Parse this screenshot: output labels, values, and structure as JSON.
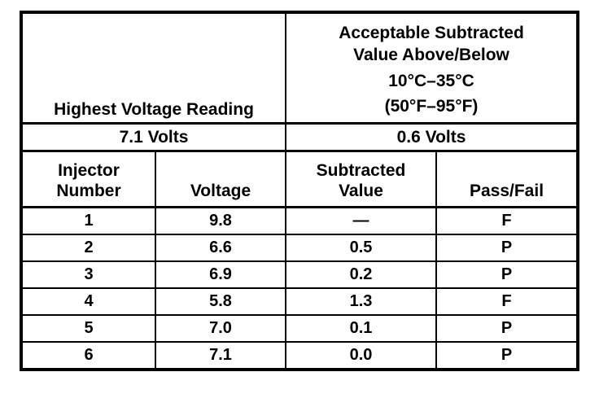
{
  "colors": {
    "ink": "#000000",
    "paper": "#ffffff"
  },
  "table": {
    "top": {
      "left_label": "Highest Voltage Reading",
      "right_lines": [
        "Acceptable Subtracted",
        "Value Above/Below",
        "10°C–35°C",
        "(50°F–95°F)"
      ]
    },
    "volts": {
      "left": "7.1 Volts",
      "right": "0.6 Volts"
    },
    "headers": [
      "Injector\nNumber",
      "Voltage",
      "Subtracted\nValue",
      "Pass/Fail"
    ],
    "rows": [
      [
        "1",
        "9.8",
        "—",
        "F"
      ],
      [
        "2",
        "6.6",
        "0.5",
        "P"
      ],
      [
        "3",
        "6.9",
        "0.2",
        "P"
      ],
      [
        "4",
        "5.8",
        "1.3",
        "F"
      ],
      [
        "5",
        "7.0",
        "0.1",
        "P"
      ],
      [
        "6",
        "7.1",
        "0.0",
        "P"
      ]
    ]
  }
}
